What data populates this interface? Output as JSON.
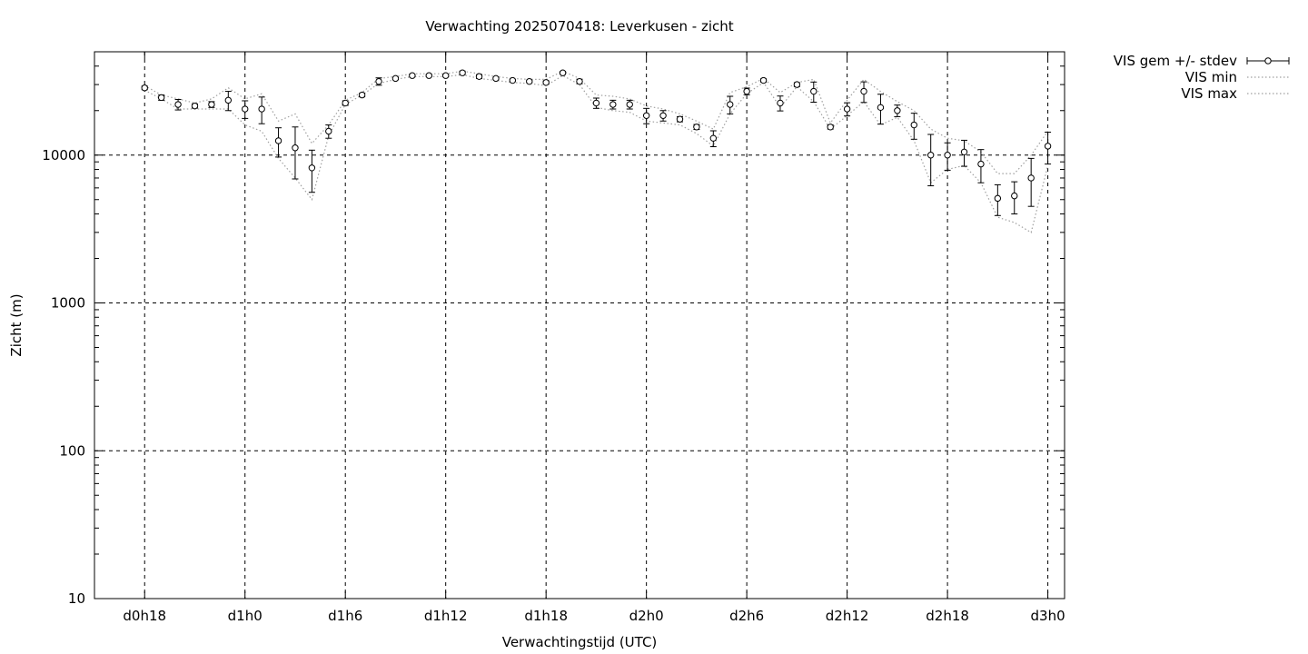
{
  "chart_data": {
    "type": "scatter",
    "title": "Verwachting 2025070418: Leverkusen - zicht",
    "xlabel": "Verwachtingstijd (UTC)",
    "ylabel": "Zicht (m)",
    "yscale": "log",
    "ylim": [
      10,
      50000
    ],
    "xlim_hours": [
      -3,
      55
    ],
    "y_ticks": [
      10,
      100,
      1000,
      10000
    ],
    "x_ticks": [
      {
        "label": "d0h18",
        "hour": 0
      },
      {
        "label": "d1h0",
        "hour": 6
      },
      {
        "label": "d1h6",
        "hour": 12
      },
      {
        "label": "d1h12",
        "hour": 18
      },
      {
        "label": "d1h18",
        "hour": 24
      },
      {
        "label": "d2h0",
        "hour": 30
      },
      {
        "label": "d2h6",
        "hour": 36
      },
      {
        "label": "d2h12",
        "hour": 42
      },
      {
        "label": "d2h18",
        "hour": 48
      },
      {
        "label": "d3h0",
        "hour": 54
      }
    ],
    "grid": true,
    "legend_position": "outside-top-right",
    "series": [
      {
        "name": "VIS gem +/- stdev",
        "style": "points-errorbars",
        "x": [
          0,
          1,
          2,
          3,
          4,
          5,
          6,
          7,
          8,
          9,
          10,
          11,
          12,
          13,
          14,
          15,
          16,
          17,
          18,
          19,
          20,
          21,
          22,
          23,
          24,
          25,
          26,
          27,
          28,
          29,
          30,
          31,
          32,
          33,
          34,
          35,
          36,
          37,
          38,
          39,
          40,
          41,
          42,
          43,
          44,
          45,
          46,
          47,
          48,
          49,
          50,
          51,
          52,
          53,
          54
        ],
        "mean": [
          28500,
          24500,
          22000,
          21500,
          22000,
          23500,
          20500,
          20500,
          12500,
          11200,
          8200,
          14500,
          22500,
          25500,
          31500,
          33000,
          34500,
          34500,
          34500,
          36000,
          34000,
          33000,
          32000,
          31500,
          31000,
          36000,
          31500,
          22500,
          22000,
          22000,
          18500,
          18500,
          17500,
          15500,
          13000,
          22000,
          27000,
          32000,
          22500,
          30000,
          27000,
          15500,
          20500,
          27000,
          21000,
          20000,
          16000,
          10000,
          10000,
          10500,
          8700,
          5100,
          5300,
          7000,
          11500
        ],
        "stdev": [
          800,
          1000,
          1800,
          700,
          1000,
          3500,
          2800,
          4200,
          2800,
          4300,
          2600,
          1500,
          800,
          700,
          1800,
          600,
          700,
          600,
          700,
          1000,
          1000,
          600,
          600,
          600,
          800,
          800,
          1100,
          1800,
          1500,
          1500,
          2200,
          1500,
          700,
          600,
          1600,
          3000,
          1400,
          800,
          2600,
          900,
          4200,
          500,
          2100,
          4300,
          4800,
          1800,
          3200,
          3800,
          2100,
          2100,
          2200,
          1200,
          1300,
          2500,
          2800
        ]
      },
      {
        "name": "VIS min",
        "style": "dotted",
        "x": [
          0,
          1,
          2,
          3,
          4,
          5,
          6,
          7,
          8,
          9,
          10,
          11,
          12,
          13,
          14,
          15,
          16,
          17,
          18,
          19,
          20,
          21,
          22,
          23,
          24,
          25,
          26,
          27,
          28,
          29,
          30,
          31,
          32,
          33,
          34,
          35,
          36,
          37,
          38,
          39,
          40,
          41,
          42,
          43,
          44,
          45,
          46,
          47,
          48,
          49,
          50,
          51,
          52,
          53,
          54
        ],
        "values": [
          27500,
          24000,
          20500,
          20500,
          20500,
          20500,
          16000,
          14500,
          9500,
          7000,
          5000,
          13500,
          22000,
          25500,
          30500,
          32500,
          34000,
          34000,
          34000,
          35000,
          33000,
          32000,
          31000,
          30500,
          29500,
          34500,
          30000,
          21000,
          20000,
          19500,
          17000,
          16500,
          16000,
          14000,
          11500,
          19000,
          26000,
          31000,
          21000,
          29000,
          23000,
          15000,
          18500,
          23000,
          16000,
          18000,
          12500,
          6500,
          8000,
          8500,
          6500,
          3800,
          3500,
          3000,
          8500
        ]
      },
      {
        "name": "VIS max",
        "style": "dotted",
        "x": [
          0,
          1,
          2,
          3,
          4,
          5,
          6,
          7,
          8,
          9,
          10,
          11,
          12,
          13,
          14,
          15,
          16,
          17,
          18,
          19,
          20,
          21,
          22,
          23,
          24,
          25,
          26,
          27,
          28,
          29,
          30,
          31,
          32,
          33,
          34,
          35,
          36,
          37,
          38,
          39,
          40,
          41,
          42,
          43,
          44,
          45,
          46,
          47,
          48,
          49,
          50,
          51,
          52,
          53,
          54
        ],
        "values": [
          29500,
          25500,
          24000,
          22500,
          24000,
          28500,
          24000,
          26000,
          17000,
          19000,
          12000,
          16000,
          23500,
          26500,
          33000,
          34000,
          35500,
          35500,
          35500,
          37000,
          35500,
          34000,
          33000,
          32500,
          32500,
          37000,
          33000,
          25500,
          25000,
          24000,
          21500,
          20500,
          19000,
          17000,
          15000,
          26500,
          29000,
          33000,
          26500,
          31000,
          32500,
          16500,
          23500,
          32500,
          27000,
          23000,
          20000,
          15000,
          13000,
          12500,
          10500,
          7500,
          7500,
          10000,
          14500
        ]
      }
    ]
  }
}
